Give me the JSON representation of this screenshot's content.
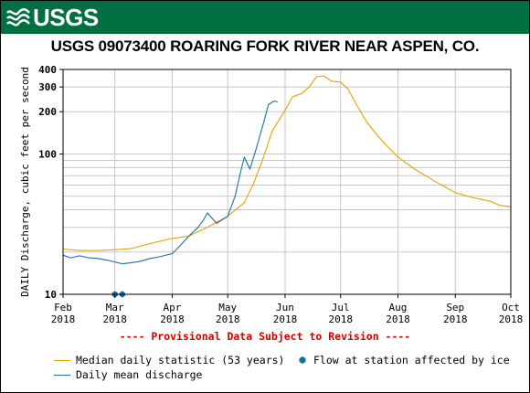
{
  "header": {
    "logo_text": "USGS",
    "logo_color": "#006f41"
  },
  "chart_data": {
    "type": "line",
    "title": "USGS 09073400 ROARING FORK RIVER NEAR ASPEN, CO.",
    "ylabel": "DAILY Discharge, cubic feet per second",
    "xlabel": "",
    "y_scale": "log",
    "ylim": [
      10,
      400
    ],
    "xlim": [
      "2018-02-01",
      "2018-10-01"
    ],
    "y_tick_labels": [
      "10",
      "100",
      "200",
      "300",
      "400"
    ],
    "x_ticks": [
      {
        "line1": "Feb",
        "line2": "2018"
      },
      {
        "line1": "Mar",
        "line2": "2018"
      },
      {
        "line1": "Apr",
        "line2": "2018"
      },
      {
        "line1": "May",
        "line2": "2018"
      },
      {
        "line1": "Jun",
        "line2": "2018"
      },
      {
        "line1": "Jul",
        "line2": "2018"
      },
      {
        "line1": "Aug",
        "line2": "2018"
      },
      {
        "line1": "Sep",
        "line2": "2018"
      },
      {
        "line1": "Oct",
        "line2": "2018"
      }
    ],
    "grid": true,
    "series": [
      {
        "name": "Median daily statistic (53 years)",
        "color": "#e8a000",
        "points": [
          [
            "2018-02-01",
            21
          ],
          [
            "2018-02-10",
            20.5
          ],
          [
            "2018-02-20",
            20.5
          ],
          [
            "2018-03-01",
            20.8
          ],
          [
            "2018-03-10",
            21.2
          ],
          [
            "2018-03-20",
            23
          ],
          [
            "2018-04-01",
            25
          ],
          [
            "2018-04-10",
            26
          ],
          [
            "2018-04-20",
            30
          ],
          [
            "2018-05-01",
            36
          ],
          [
            "2018-05-10",
            45
          ],
          [
            "2018-05-15",
            62
          ],
          [
            "2018-05-20",
            92
          ],
          [
            "2018-05-25",
            145
          ],
          [
            "2018-06-01",
            205
          ],
          [
            "2018-06-05",
            255
          ],
          [
            "2018-06-10",
            270
          ],
          [
            "2018-06-14",
            300
          ],
          [
            "2018-06-18",
            355
          ],
          [
            "2018-06-22",
            360
          ],
          [
            "2018-06-26",
            330
          ],
          [
            "2018-07-01",
            325
          ],
          [
            "2018-07-05",
            290
          ],
          [
            "2018-07-10",
            220
          ],
          [
            "2018-07-15",
            170
          ],
          [
            "2018-07-20",
            140
          ],
          [
            "2018-07-25",
            118
          ],
          [
            "2018-08-01",
            95
          ],
          [
            "2018-08-10",
            78
          ],
          [
            "2018-08-20",
            65
          ],
          [
            "2018-09-01",
            53
          ],
          [
            "2018-09-10",
            49
          ],
          [
            "2018-09-20",
            46
          ],
          [
            "2018-09-25",
            43
          ],
          [
            "2018-10-01",
            42
          ]
        ]
      },
      {
        "name": "Daily mean discharge",
        "color": "#1a6fa8",
        "points": [
          [
            "2018-02-01",
            19
          ],
          [
            "2018-02-05",
            18.2
          ],
          [
            "2018-02-10",
            18.8
          ],
          [
            "2018-02-15",
            18.2
          ],
          [
            "2018-02-20",
            18
          ],
          [
            "2018-02-25",
            17.5
          ],
          [
            "2018-03-01",
            17
          ],
          [
            "2018-03-05",
            16.5
          ],
          [
            "2018-03-10",
            16.8
          ],
          [
            "2018-03-15",
            17.2
          ],
          [
            "2018-03-20",
            18
          ],
          [
            "2018-03-25",
            18.5
          ],
          [
            "2018-04-01",
            19.5
          ],
          [
            "2018-04-05",
            22
          ],
          [
            "2018-04-10",
            26
          ],
          [
            "2018-04-15",
            30
          ],
          [
            "2018-04-18",
            34
          ],
          [
            "2018-04-20",
            38
          ],
          [
            "2018-04-25",
            32
          ],
          [
            "2018-05-01",
            36
          ],
          [
            "2018-05-05",
            50
          ],
          [
            "2018-05-08",
            75
          ],
          [
            "2018-05-10",
            95
          ],
          [
            "2018-05-13",
            78
          ],
          [
            "2018-05-16",
            105
          ],
          [
            "2018-05-20",
            160
          ],
          [
            "2018-05-23",
            225
          ],
          [
            "2018-05-26",
            238
          ],
          [
            "2018-05-28",
            235
          ]
        ]
      },
      {
        "name": "Flow at station affected by ice",
        "color": "#1a6fa8",
        "type": "scatter",
        "points": [
          [
            "2018-03-01",
            10
          ],
          [
            "2018-03-05",
            10
          ]
        ]
      }
    ]
  },
  "provisional_note": "---- Provisional Data Subject to Revision ----",
  "legend": {
    "median_label": "Median daily statistic (53 years)",
    "ice_label": "Flow at station affected by ice",
    "mean_label": "Daily mean discharge"
  }
}
